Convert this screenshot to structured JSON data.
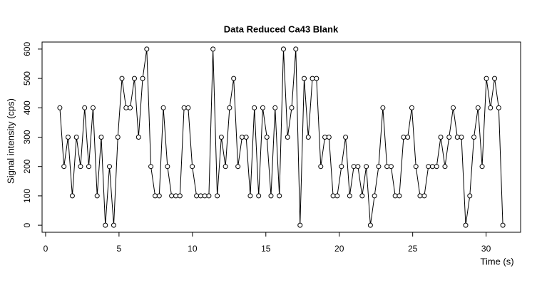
{
  "chart_data": {
    "type": "line",
    "title": "Data Reduced Ca43 Blank",
    "xlabel": "Time (s)",
    "ylabel": "Signal intensity (cps)",
    "x": [
      0.97,
      1.25,
      1.53,
      1.82,
      2.1,
      2.38,
      2.66,
      2.94,
      3.23,
      3.51,
      3.79,
      4.07,
      4.35,
      4.64,
      4.92,
      5.2,
      5.48,
      5.76,
      6.05,
      6.33,
      6.61,
      6.89,
      7.17,
      7.46,
      7.74,
      8.02,
      8.3,
      8.58,
      8.87,
      9.15,
      9.43,
      9.71,
      9.99,
      10.28,
      10.56,
      10.84,
      11.12,
      11.4,
      11.69,
      11.97,
      12.25,
      12.53,
      12.81,
      13.1,
      13.38,
      13.66,
      13.94,
      14.22,
      14.51,
      14.79,
      15.07,
      15.35,
      15.63,
      15.92,
      16.2,
      16.48,
      16.76,
      17.04,
      17.33,
      17.61,
      17.89,
      18.17,
      18.45,
      18.74,
      19.02,
      19.3,
      19.58,
      19.86,
      20.15,
      20.43,
      20.71,
      20.99,
      21.27,
      21.56,
      21.84,
      22.12,
      22.4,
      22.68,
      22.97,
      23.25,
      23.53,
      23.81,
      24.09,
      24.38,
      24.66,
      24.94,
      25.22,
      25.5,
      25.79,
      26.07,
      26.35,
      26.63,
      26.91,
      27.2,
      27.48,
      27.76,
      28.04,
      28.32,
      28.61,
      28.89,
      29.17,
      29.45,
      29.73,
      30.02,
      30.3,
      30.58,
      30.86,
      31.14
    ],
    "values": [
      400,
      200,
      300,
      100,
      300,
      200,
      400,
      200,
      400,
      100,
      300,
      0,
      200,
      0,
      300,
      500,
      400,
      400,
      500,
      300,
      500,
      600,
      200,
      100,
      100,
      400,
      200,
      100,
      100,
      100,
      400,
      400,
      200,
      100,
      100,
      100,
      100,
      600,
      100,
      300,
      200,
      400,
      500,
      200,
      300,
      300,
      100,
      400,
      100,
      400,
      300,
      100,
      400,
      100,
      600,
      300,
      400,
      600,
      0,
      500,
      300,
      500,
      500,
      200,
      300,
      300,
      100,
      100,
      200,
      300,
      100,
      200,
      200,
      100,
      200,
      0,
      100,
      200,
      400,
      200,
      200,
      100,
      100,
      300,
      300,
      400,
      200,
      100,
      100,
      200,
      200,
      200,
      300,
      200,
      300,
      400,
      300,
      300,
      0,
      100,
      300,
      400,
      200,
      500,
      400,
      500,
      400,
      0
    ],
    "color": "#000000",
    "xlim": [
      -0.24,
      32.35
    ],
    "xticks": [
      0,
      5,
      10,
      15,
      20,
      25,
      30
    ],
    "ylim": [
      -24,
      624
    ],
    "yticks": [
      0,
      100,
      200,
      300,
      400,
      500,
      600
    ]
  }
}
